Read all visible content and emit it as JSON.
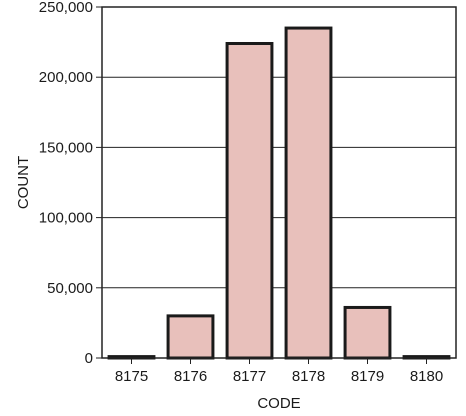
{
  "chart_data": {
    "type": "bar",
    "xlabel": "CODE",
    "ylabel": "COUNT",
    "categories": [
      "8175",
      "8176",
      "8177",
      "8178",
      "8179",
      "8180"
    ],
    "values": [
      1000,
      30000,
      224000,
      235000,
      36000,
      1000
    ],
    "ylim": [
      0,
      250000
    ],
    "yticks": [
      0,
      50000,
      100000,
      150000,
      200000,
      250000
    ],
    "ytick_labels": [
      "0",
      "50,000",
      "100,000",
      "150,000",
      "200,000",
      "250,000"
    ],
    "grid": "horizontal",
    "bar_color": "#e8c0bb",
    "bar_edge_color": "#1a1a1a"
  }
}
